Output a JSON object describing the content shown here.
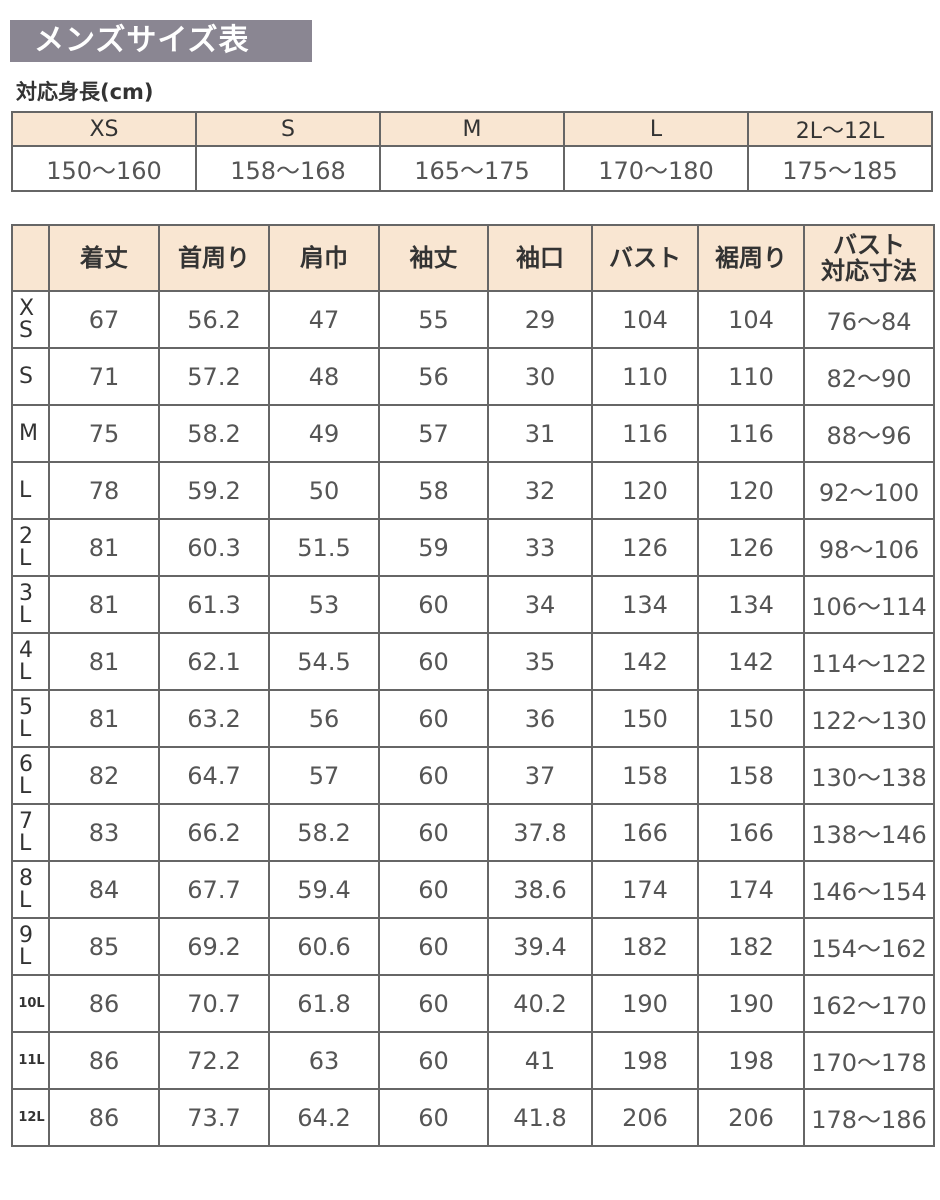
{
  "title": "メンズサイズ表",
  "height_table": {
    "caption": "対応身長(cm)",
    "sizes": [
      "XS",
      "S",
      "M",
      "L",
      "2L〜12L"
    ],
    "heights": [
      "150〜160",
      "158〜168",
      "165〜175",
      "170〜180",
      "175〜185"
    ]
  },
  "size_table": {
    "header_color": "#f9e6d2",
    "columns": [
      "",
      "着丈",
      "首周り",
      "肩巾",
      "袖丈",
      "袖口",
      "バスト",
      "裾周り",
      "バスト\n対応寸法"
    ],
    "rows": [
      [
        "XS",
        "67",
        "56.2",
        "47",
        "55",
        "29",
        "104",
        "104",
        "76〜84"
      ],
      [
        "S",
        "71",
        "57.2",
        "48",
        "56",
        "30",
        "110",
        "110",
        "82〜90"
      ],
      [
        "M",
        "75",
        "58.2",
        "49",
        "57",
        "31",
        "116",
        "116",
        "88〜96"
      ],
      [
        "L",
        "78",
        "59.2",
        "50",
        "58",
        "32",
        "120",
        "120",
        "92〜100"
      ],
      [
        "2L",
        "81",
        "60.3",
        "51.5",
        "59",
        "33",
        "126",
        "126",
        "98〜106"
      ],
      [
        "3L",
        "81",
        "61.3",
        "53",
        "60",
        "34",
        "134",
        "134",
        "106〜114"
      ],
      [
        "4L",
        "81",
        "62.1",
        "54.5",
        "60",
        "35",
        "142",
        "142",
        "114〜122"
      ],
      [
        "5L",
        "81",
        "63.2",
        "56",
        "60",
        "36",
        "150",
        "150",
        "122〜130"
      ],
      [
        "6L",
        "82",
        "64.7",
        "57",
        "60",
        "37",
        "158",
        "158",
        "130〜138"
      ],
      [
        "7L",
        "83",
        "66.2",
        "58.2",
        "60",
        "37.8",
        "166",
        "166",
        "138〜146"
      ],
      [
        "8L",
        "84",
        "67.7",
        "59.4",
        "60",
        "38.6",
        "174",
        "174",
        "146〜154"
      ],
      [
        "9L",
        "85",
        "69.2",
        "60.6",
        "60",
        "39.4",
        "182",
        "182",
        "154〜162"
      ],
      [
        "10L",
        "86",
        "70.7",
        "61.8",
        "60",
        "40.2",
        "190",
        "190",
        "162〜170"
      ],
      [
        "11L",
        "86",
        "72.2",
        "63",
        "60",
        "41",
        "198",
        "198",
        "170〜178"
      ],
      [
        "12L",
        "86",
        "73.7",
        "64.2",
        "60",
        "41.8",
        "206",
        "206",
        "178〜186"
      ]
    ]
  }
}
